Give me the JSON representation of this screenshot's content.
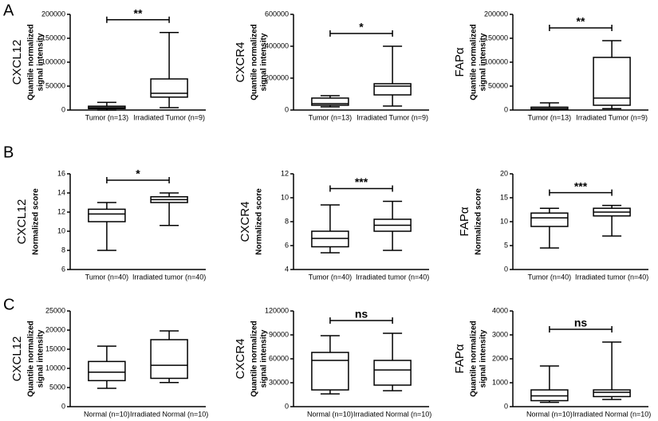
{
  "panel_labels": [
    "A",
    "B",
    "C"
  ],
  "chart_data": [
    {
      "type": "box",
      "ylabel": "CXCL12",
      "ylabel_sub": [
        "Quantile normalized",
        "signal intensity"
      ],
      "categories": [
        "Tumor (n=13)",
        "Irradiated Tumor (n=9)"
      ],
      "boxes": [
        {
          "whislo": 0,
          "q1": 3000,
          "med": 5000,
          "q3": 8000,
          "whishi": 16000
        },
        {
          "whislo": 5000,
          "q1": 27000,
          "med": 35000,
          "q3": 65000,
          "whishi": 162000
        }
      ],
      "ylim": [
        0,
        200000
      ],
      "yticks": [
        0,
        50000,
        100000,
        150000,
        200000
      ],
      "significance": "**"
    },
    {
      "type": "box",
      "ylabel": "CXCR4",
      "ylabel_sub": [
        "Quantile normalized",
        "signal intensity"
      ],
      "categories": [
        "Tumor (n=13)",
        "Irradiated Tumor (n=9)"
      ],
      "boxes": [
        {
          "whislo": 20000,
          "q1": 30000,
          "med": 40000,
          "q3": 75000,
          "whishi": 90000
        },
        {
          "whislo": 25000,
          "q1": 95000,
          "med": 150000,
          "q3": 165000,
          "whishi": 400000
        }
      ],
      "ylim": [
        0,
        600000
      ],
      "yticks": [
        0,
        200000,
        400000,
        600000
      ],
      "significance": "*"
    },
    {
      "type": "box",
      "ylabel": "FAPα",
      "ylabel_sub": [
        "Quantile normalized",
        "signal intensity"
      ],
      "categories": [
        "Tumor (n=13)",
        "Irradiated Tumor (n=9)"
      ],
      "boxes": [
        {
          "whislo": 0,
          "q1": 1000,
          "med": 3000,
          "q3": 6000,
          "whishi": 15000
        },
        {
          "whislo": 3000,
          "q1": 10000,
          "med": 25000,
          "q3": 110000,
          "whishi": 145000
        }
      ],
      "ylim": [
        0,
        200000
      ],
      "yticks": [
        0,
        50000,
        100000,
        150000,
        200000
      ],
      "significance": "**"
    },
    {
      "type": "box",
      "ylabel": "CXCL12",
      "ylabel_sub": [
        "Normalized score"
      ],
      "categories": [
        "Tumor (n=40)",
        "Irradiated tumor (n=40)"
      ],
      "boxes": [
        {
          "whislo": 8,
          "q1": 11,
          "med": 11.8,
          "q3": 12.3,
          "whishi": 13
        },
        {
          "whislo": 10.6,
          "q1": 13,
          "med": 13.3,
          "q3": 13.6,
          "whishi": 14
        }
      ],
      "ylim": [
        6,
        16
      ],
      "yticks": [
        6,
        8,
        10,
        12,
        14,
        16
      ],
      "significance": "*"
    },
    {
      "type": "box",
      "ylabel": "CXCR4",
      "ylabel_sub": [
        "Normalized score"
      ],
      "categories": [
        "Tumor (n=40)",
        "Irradiated tumor (n=40)"
      ],
      "boxes": [
        {
          "whislo": 5.4,
          "q1": 5.9,
          "med": 6.6,
          "q3": 7.2,
          "whishi": 9.4
        },
        {
          "whislo": 5.6,
          "q1": 7.2,
          "med": 7.7,
          "q3": 8.2,
          "whishi": 9.7
        }
      ],
      "ylim": [
        4,
        12
      ],
      "yticks": [
        4,
        6,
        8,
        10,
        12
      ],
      "significance": "***"
    },
    {
      "type": "box",
      "ylabel": "FAPα",
      "ylabel_sub": [
        "Normalized score"
      ],
      "categories": [
        "Tumor (n=40)",
        "Irradiated tumor (n=40)"
      ],
      "boxes": [
        {
          "whislo": 4.5,
          "q1": 9,
          "med": 10.8,
          "q3": 11.8,
          "whishi": 12.8
        },
        {
          "whislo": 7,
          "q1": 11.2,
          "med": 12,
          "q3": 12.8,
          "whishi": 13.4
        }
      ],
      "ylim": [
        0,
        20
      ],
      "yticks": [
        0,
        5,
        10,
        15,
        20
      ],
      "significance": "***"
    },
    {
      "type": "box",
      "ylabel": "CXCL12",
      "ylabel_sub": [
        "Quantile normalized",
        "signal intensity"
      ],
      "categories": [
        "Normal (n=10)",
        "Irradiated Normal (n=10)"
      ],
      "boxes": [
        {
          "whislo": 4800,
          "q1": 6800,
          "med": 9000,
          "q3": 11800,
          "whishi": 15800
        },
        {
          "whislo": 6300,
          "q1": 7400,
          "med": 10800,
          "q3": 17500,
          "whishi": 19800
        }
      ],
      "ylim": [
        0,
        25000
      ],
      "yticks": [
        0,
        5000,
        10000,
        15000,
        20000,
        25000
      ]
    },
    {
      "type": "box",
      "ylabel": "CXCR4",
      "ylabel_sub": [
        "Quantile normalized",
        "signal intensity"
      ],
      "categories": [
        "Normal (n=10)",
        "Irradiated Normal (n=10)"
      ],
      "boxes": [
        {
          "whislo": 16000,
          "q1": 21000,
          "med": 58000,
          "q3": 68000,
          "whishi": 89000
        },
        {
          "whislo": 20000,
          "q1": 27000,
          "med": 46000,
          "q3": 58000,
          "whishi": 92000
        }
      ],
      "ylim": [
        0,
        120000
      ],
      "yticks": [
        0,
        30000,
        60000,
        90000,
        120000
      ],
      "significance": "ns"
    },
    {
      "type": "box",
      "ylabel": "FAPα",
      "ylabel_sub": [
        "Quantile normalized",
        "signal intensity"
      ],
      "categories": [
        "Normal (n=10)",
        "Irradiated Normal (n=10)"
      ],
      "boxes": [
        {
          "whislo": 180,
          "q1": 250,
          "med": 450,
          "q3": 700,
          "whishi": 1700
        },
        {
          "whislo": 300,
          "q1": 420,
          "med": 600,
          "q3": 700,
          "whishi": 2700
        }
      ],
      "ylim": [
        0,
        4000
      ],
      "yticks": [
        0,
        1000,
        2000,
        3000,
        4000
      ],
      "significance": "ns"
    }
  ]
}
